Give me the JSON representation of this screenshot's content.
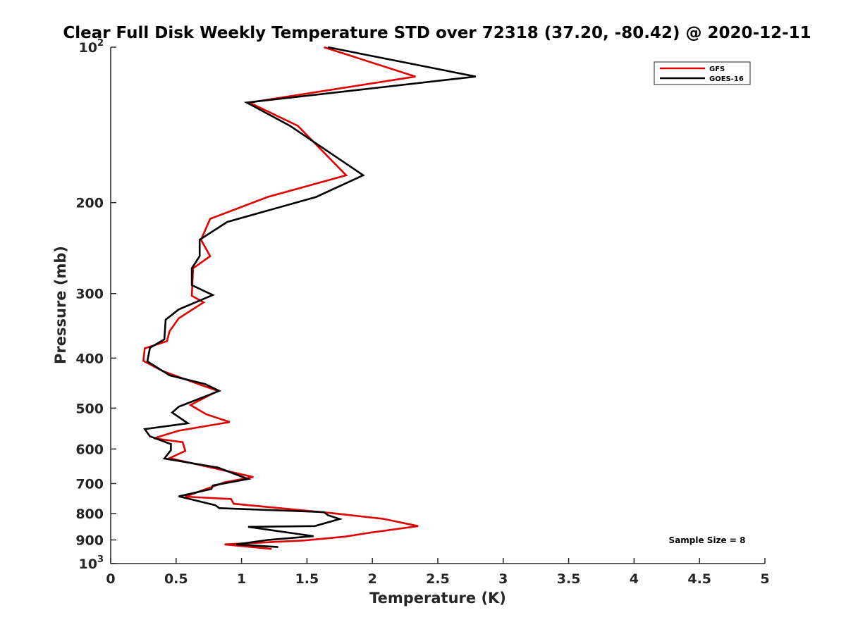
{
  "chart_data": {
    "type": "line",
    "title": "Clear Full Disk Weekly Temperature STD over 72318 (37.20, -80.42) @ 2020-12-11",
    "xlabel": "Temperature (K)",
    "ylabel": "Pressure (mb)",
    "xlim": [
      0,
      5
    ],
    "ylim": [
      100,
      1000
    ],
    "y_scale": "log",
    "y_reversed": true,
    "grid": false,
    "legend_position": "top-right",
    "x_ticks": [
      "0",
      "0.5",
      "1",
      "1.5",
      "2",
      "2.5",
      "3",
      "3.5",
      "4",
      "4.5",
      "5"
    ],
    "y_ticks": [
      {
        "value": 100,
        "base": "10",
        "exp": "2"
      },
      {
        "value": 200,
        "label": "200"
      },
      {
        "value": 300,
        "label": "300"
      },
      {
        "value": 400,
        "label": "400"
      },
      {
        "value": 500,
        "label": "500"
      },
      {
        "value": 600,
        "label": "600"
      },
      {
        "value": 700,
        "label": "700"
      },
      {
        "value": 800,
        "label": "800"
      },
      {
        "value": 900,
        "label": "900"
      },
      {
        "value": 1000,
        "base": "10",
        "exp": "3"
      }
    ],
    "annotation": "Sample Size = 8",
    "series": [
      {
        "name": "GFS",
        "color": "#e00000",
        "x": [
          1.63,
          2.33,
          1.06,
          1.43,
          1.8,
          1.2,
          0.76,
          0.69,
          0.76,
          0.63,
          0.62,
          0.71,
          0.52,
          0.45,
          0.43,
          0.26,
          0.25,
          0.4,
          0.7,
          0.82,
          0.61,
          0.73,
          0.91,
          0.52,
          0.33,
          0.55,
          0.57,
          0.45,
          0.82,
          1.09,
          0.87,
          0.57,
          0.92,
          0.94,
          1.7,
          2.08,
          2.35,
          1.99,
          1.79,
          1.48,
          0.87,
          1.23
        ],
        "y": [
          100,
          114,
          128,
          142,
          177,
          195,
          215,
          236,
          254,
          268,
          303,
          312,
          335,
          355,
          371,
          383,
          405,
          424,
          452,
          463,
          493,
          514,
          532,
          553,
          572,
          582,
          605,
          625,
          656,
          680,
          696,
          742,
          750,
          766,
          799,
          819,
          846,
          871,
          887,
          902,
          918,
          937
        ]
      },
      {
        "name": "GOES-16",
        "color": "#000000",
        "x": [
          1.66,
          2.79,
          1.04,
          1.37,
          1.93,
          1.57,
          0.89,
          0.68,
          0.68,
          0.62,
          0.62,
          0.78,
          0.52,
          0.42,
          0.41,
          0.3,
          0.28,
          0.45,
          0.72,
          0.83,
          0.52,
          0.47,
          0.59,
          0.26,
          0.3,
          0.46,
          0.46,
          0.41,
          0.82,
          1.05,
          0.78,
          0.77,
          0.52,
          0.8,
          0.83,
          1.63,
          1.66,
          1.75,
          1.56,
          1.05,
          1.55,
          1.2,
          0.96,
          1.28
        ],
        "y": [
          100,
          114,
          128,
          142,
          177,
          195,
          218,
          236,
          254,
          268,
          289,
          302,
          322,
          337,
          368,
          382,
          406,
          432,
          449,
          463,
          497,
          510,
          535,
          549,
          567,
          587,
          603,
          626,
          652,
          686,
          706,
          717,
          741,
          771,
          781,
          795,
          806,
          820,
          846,
          849,
          885,
          900,
          918,
          929
        ]
      }
    ]
  }
}
